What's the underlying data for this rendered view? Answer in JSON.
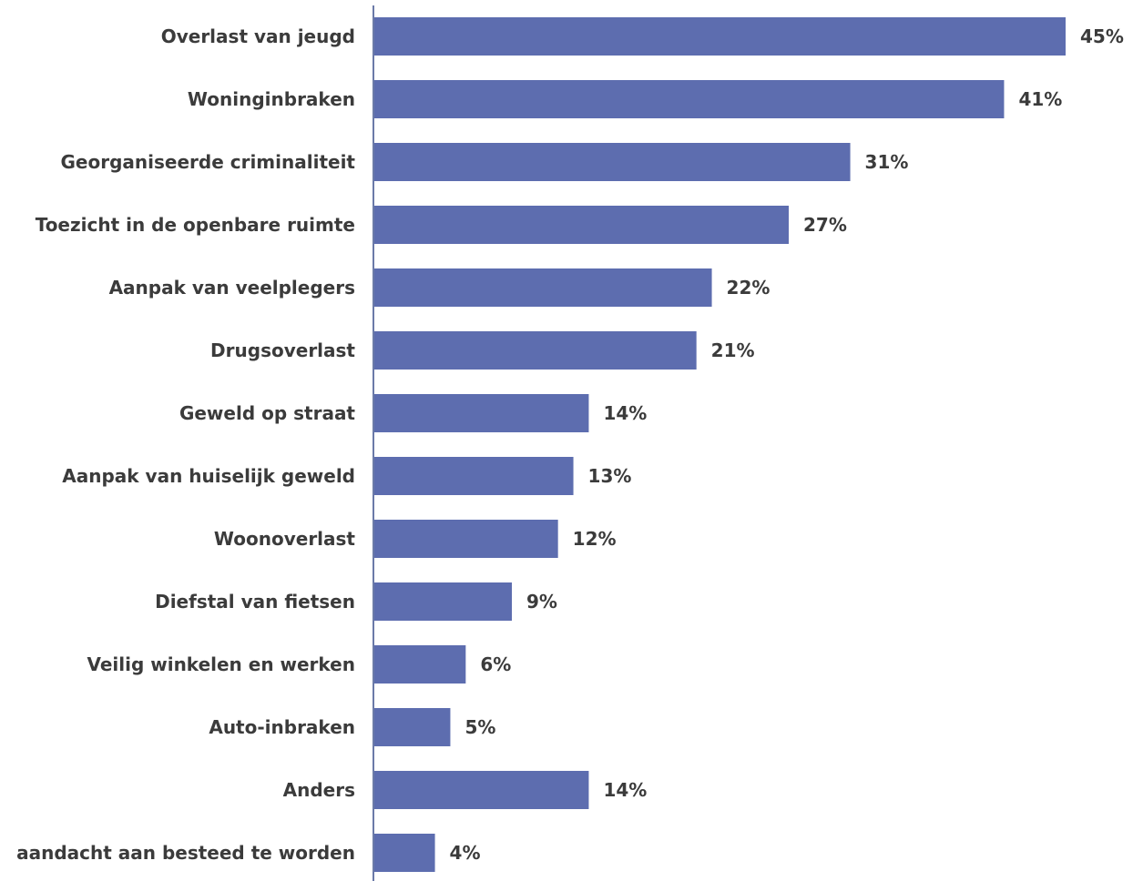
{
  "chart_data": {
    "type": "bar",
    "orientation": "horizontal",
    "categories": [
      "Overlast van jeugd",
      "Woninginbraken",
      "Georganiseerde criminaliteit",
      "Toezicht in de openbare ruimte",
      "Aanpak van veelplegers",
      "Drugsoverlast",
      "Geweld op straat",
      "Aanpak van huiselijk geweld",
      "Woonoverlast",
      "Diefstal van fietsen",
      "Veilig winkelen en werken",
      "Auto-inbraken",
      "Anders",
      "aandacht aan besteed te worden"
    ],
    "values": [
      45,
      41,
      31,
      27,
      22,
      21,
      14,
      13,
      12,
      9,
      6,
      5,
      14,
      4
    ],
    "value_labels": [
      "45%",
      "41%",
      "31%",
      "27%",
      "22%",
      "21%",
      "14%",
      "13%",
      "12%",
      "9%",
      "6%",
      "5%",
      "14%",
      "4%"
    ],
    "unit": "%",
    "xlim": [
      0,
      45
    ],
    "grid": false,
    "legend": "none",
    "title": "",
    "xlabel": "",
    "ylabel": "",
    "colors": {
      "bar": "#5d6daf",
      "axis": "#6b7aa8",
      "text": "#3b3b3b"
    }
  }
}
